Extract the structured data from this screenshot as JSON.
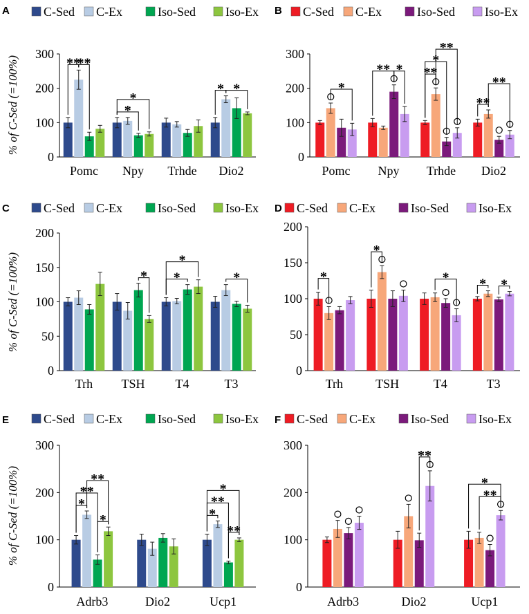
{
  "ylabel": "% of C-Sed (=100%)",
  "chart_data": [
    {
      "panel": "A",
      "type": "bar",
      "ylim": [
        0,
        300
      ],
      "yticks": [
        0,
        100,
        200,
        300
      ],
      "series": [
        "C-Sed",
        "C-Ex",
        "Iso-Sed",
        "Iso-Ex"
      ],
      "colors": [
        "#2e4a8c",
        "#b8cce4",
        "#00a651",
        "#8dc63f"
      ],
      "categories": [
        "Pomc",
        "Npy",
        "Trhde",
        "Dio2"
      ],
      "values": [
        [
          100,
          225,
          60,
          82
        ],
        [
          100,
          105,
          63,
          67
        ],
        [
          100,
          95,
          70,
          90
        ],
        [
          100,
          168,
          142,
          127
        ]
      ],
      "errors": [
        [
          15,
          28,
          12,
          10
        ],
        [
          15,
          10,
          6,
          6
        ],
        [
          13,
          8,
          10,
          18
        ],
        [
          15,
          10,
          30,
          4
        ]
      ],
      "circles": [],
      "sig": [
        {
          "cat": 0,
          "from": 0,
          "to": 1,
          "label": "**",
          "level": 0
        },
        {
          "cat": 0,
          "from": 1,
          "to": 2,
          "label": "**",
          "level": 0
        },
        {
          "cat": 1,
          "from": 0,
          "to": 2,
          "label": "*",
          "level": 0
        },
        {
          "cat": 1,
          "from": 0,
          "to": 3,
          "label": "*",
          "level": 1
        },
        {
          "cat": 3,
          "from": 0,
          "to": 1,
          "label": "*",
          "level": 0
        },
        {
          "cat": 3,
          "from": 1,
          "to": 3,
          "label": "*",
          "level": 0
        }
      ]
    },
    {
      "panel": "B",
      "type": "bar",
      "ylim": [
        0,
        300
      ],
      "yticks": [
        0,
        100,
        200,
        300
      ],
      "series": [
        "C-Sed",
        "C-Ex",
        "Iso-Sed",
        "Iso-Ex"
      ],
      "colors": [
        "#ee1c24",
        "#f7a77a",
        "#7b1a7b",
        "#c89cf0"
      ],
      "categories": [
        "Pomc",
        "Npy",
        "Trhde",
        "Dio2"
      ],
      "values": [
        [
          100,
          142,
          85,
          80
        ],
        [
          100,
          85,
          190,
          125
        ],
        [
          100,
          183,
          45,
          70
        ],
        [
          100,
          125,
          50,
          65
        ]
      ],
      "errors": [
        [
          6,
          15,
          25,
          18
        ],
        [
          12,
          5,
          20,
          22
        ],
        [
          6,
          18,
          12,
          15
        ],
        [
          10,
          12,
          10,
          12
        ]
      ],
      "circles": [
        {
          "cat": 0,
          "bar": 1
        },
        {
          "cat": 1,
          "bar": 2
        },
        {
          "cat": 2,
          "bar": 1
        },
        {
          "cat": 2,
          "bar": 2
        },
        {
          "cat": 2,
          "bar": 3
        },
        {
          "cat": 3,
          "bar": 2
        },
        {
          "cat": 3,
          "bar": 3
        }
      ],
      "sig": [
        {
          "cat": 0,
          "from": 1,
          "to": 3,
          "label": "*",
          "level": 0
        },
        {
          "cat": 1,
          "from": 0,
          "to": 2,
          "label": "**",
          "level": 0
        },
        {
          "cat": 1,
          "from": 2,
          "to": 3,
          "label": "*",
          "level": 0
        },
        {
          "cat": 2,
          "from": 0,
          "to": 1,
          "label": "**",
          "level": 0
        },
        {
          "cat": 2,
          "from": 0,
          "to": 2,
          "label": "*",
          "level": 1
        },
        {
          "cat": 2,
          "from": 1,
          "to": 3,
          "label": "**",
          "level": 2
        },
        {
          "cat": 3,
          "from": 0,
          "to": 1,
          "label": "**",
          "level": 0
        },
        {
          "cat": 3,
          "from": 1,
          "to": 3,
          "label": "**",
          "level": 1
        }
      ]
    },
    {
      "panel": "C",
      "type": "bar",
      "ylim": [
        0,
        200
      ],
      "yticks": [
        0,
        50,
        100,
        150,
        200
      ],
      "series": [
        "C-Sed",
        "C-Ex",
        "Iso-Sed",
        "Iso-Ex"
      ],
      "colors": [
        "#2e4a8c",
        "#b8cce4",
        "#00a651",
        "#8dc63f"
      ],
      "categories": [
        "Trh",
        "TSH",
        "T4",
        "T3"
      ],
      "values": [
        [
          100,
          106,
          89,
          126
        ],
        [
          100,
          87,
          117,
          75
        ],
        [
          100,
          101,
          118,
          122
        ],
        [
          100,
          117,
          97,
          90
        ]
      ],
      "errors": [
        [
          6,
          10,
          7,
          17
        ],
        [
          12,
          12,
          10,
          5
        ],
        [
          6,
          4,
          7,
          10
        ],
        [
          8,
          8,
          4,
          5
        ]
      ],
      "circles": [],
      "sig": [
        {
          "cat": 1,
          "from": 2,
          "to": 3,
          "label": "*",
          "level": 0
        },
        {
          "cat": 2,
          "from": 0,
          "to": 2,
          "label": "*",
          "level": 0
        },
        {
          "cat": 2,
          "from": 0,
          "to": 3,
          "label": "*",
          "level": 1
        },
        {
          "cat": 3,
          "from": 1,
          "to": 3,
          "label": "*",
          "level": 0
        }
      ]
    },
    {
      "panel": "D",
      "type": "bar",
      "ylim": [
        0,
        200
      ],
      "yticks": [
        0,
        50,
        100,
        150,
        200
      ],
      "series": [
        "C-Sed",
        "C-Ex",
        "Iso-Sed",
        "Iso-Ex"
      ],
      "colors": [
        "#ee1c24",
        "#f7a77a",
        "#7b1a7b",
        "#c89cf0"
      ],
      "categories": [
        "Trh",
        "TSH",
        "T4",
        "T3"
      ],
      "values": [
        [
          100,
          80,
          84,
          98
        ],
        [
          100,
          137,
          100,
          104
        ],
        [
          100,
          102,
          94,
          77
        ],
        [
          100,
          107,
          99,
          107
        ]
      ],
      "errors": [
        [
          9,
          9,
          5,
          5
        ],
        [
          12,
          9,
          11,
          8
        ],
        [
          8,
          6,
          6,
          9
        ],
        [
          3,
          4,
          3,
          3
        ]
      ],
      "circles": [
        {
          "cat": 0,
          "bar": 1
        },
        {
          "cat": 1,
          "bar": 1
        },
        {
          "cat": 1,
          "bar": 3
        },
        {
          "cat": 2,
          "bar": 2
        },
        {
          "cat": 2,
          "bar": 3
        }
      ],
      "sig": [
        {
          "cat": 0,
          "from": 0,
          "to": 1,
          "label": "*",
          "level": 0
        },
        {
          "cat": 1,
          "from": 0,
          "to": 1,
          "label": "*",
          "level": 0
        },
        {
          "cat": 2,
          "from": 1,
          "to": 3,
          "label": "*",
          "level": 0
        },
        {
          "cat": 3,
          "from": 0,
          "to": 1,
          "label": "*",
          "level": 0
        },
        {
          "cat": 3,
          "from": 2,
          "to": 3,
          "label": "*",
          "level": 0
        }
      ]
    },
    {
      "panel": "E",
      "type": "bar",
      "ylim": [
        0,
        300
      ],
      "yticks": [
        0,
        100,
        200,
        300
      ],
      "series": [
        "C-Sed",
        "C-Ex",
        "Iso-Sed",
        "Iso-Ex"
      ],
      "colors": [
        "#2e4a8c",
        "#b8cce4",
        "#00a651",
        "#8dc63f"
      ],
      "categories": [
        "Adrb3",
        "Dio2",
        "Ucp1"
      ],
      "values": [
        [
          100,
          153,
          58,
          118
        ],
        [
          100,
          81,
          104,
          86
        ],
        [
          100,
          133,
          52,
          100
        ]
      ],
      "errors": [
        [
          9,
          8,
          10,
          9
        ],
        [
          12,
          14,
          9,
          16
        ],
        [
          12,
          7,
          3,
          4
        ]
      ],
      "circles": [],
      "sig": [
        {
          "cat": 0,
          "from": 0,
          "to": 1,
          "label": "*",
          "level": 0
        },
        {
          "cat": 0,
          "from": 0,
          "to": 2,
          "label": "**",
          "level": 1
        },
        {
          "cat": 0,
          "from": 1,
          "to": 3,
          "label": "**",
          "level": 2
        },
        {
          "cat": 0,
          "from": 2,
          "to": 3,
          "label": "*",
          "level": 0
        },
        {
          "cat": 2,
          "from": 0,
          "to": 1,
          "label": "*",
          "level": 0
        },
        {
          "cat": 2,
          "from": 0,
          "to": 2,
          "label": "**",
          "level": 1
        },
        {
          "cat": 2,
          "from": 0,
          "to": 3,
          "label": "*",
          "level": 2
        },
        {
          "cat": 2,
          "from": 2,
          "to": 3,
          "label": "**",
          "level": 0
        }
      ]
    },
    {
      "panel": "F",
      "type": "bar",
      "ylim": [
        0,
        300
      ],
      "yticks": [
        0,
        100,
        200,
        300
      ],
      "series": [
        "C-Sed",
        "C-Ex",
        "Iso-Sed",
        "Iso-Ex"
      ],
      "colors": [
        "#ee1c24",
        "#f7a77a",
        "#7b1a7b",
        "#c89cf0"
      ],
      "categories": [
        "Adrb3",
        "Dio2",
        "Ucp1"
      ],
      "values": [
        [
          100,
          123,
          114,
          136
        ],
        [
          100,
          150,
          99,
          214
        ],
        [
          100,
          104,
          78,
          152
        ]
      ],
      "errors": [
        [
          6,
          18,
          12,
          14
        ],
        [
          18,
          25,
          15,
          32
        ],
        [
          18,
          12,
          12,
          10
        ]
      ],
      "circles": [
        {
          "cat": 0,
          "bar": 1
        },
        {
          "cat": 0,
          "bar": 2
        },
        {
          "cat": 0,
          "bar": 3
        },
        {
          "cat": 1,
          "bar": 1
        },
        {
          "cat": 1,
          "bar": 3
        },
        {
          "cat": 2,
          "bar": 2
        },
        {
          "cat": 2,
          "bar": 3
        }
      ],
      "sig": [
        {
          "cat": 1,
          "from": 2,
          "to": 3,
          "label": "**",
          "level": 0
        },
        {
          "cat": 2,
          "from": 1,
          "to": 3,
          "label": "**",
          "level": 0
        },
        {
          "cat": 2,
          "from": 0,
          "to": 3,
          "label": "*",
          "level": 1
        }
      ]
    }
  ]
}
